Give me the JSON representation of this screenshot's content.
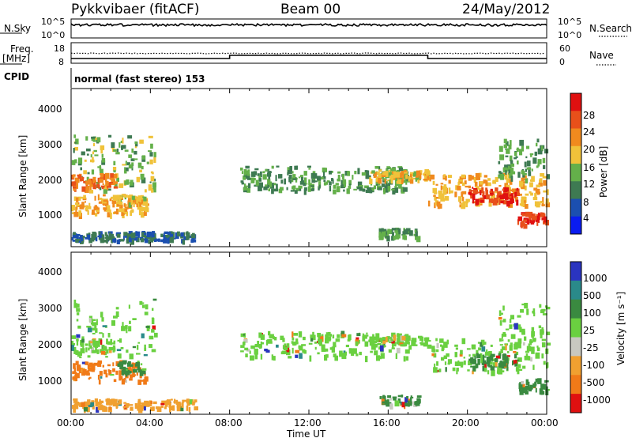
{
  "header": {
    "station": "Pykkvibaer (fitACF)",
    "beam": "Beam 00",
    "date": "24/May/2012"
  },
  "noise_panel": {
    "left_label": "N.Sky",
    "right_label": "N.Search",
    "yticks": [
      "10^5",
      "10^0"
    ],
    "right_ticks": [
      "10^5",
      "10^0"
    ]
  },
  "freq_panel": {
    "left_label_1": "Freq.",
    "left_label_2": "[MHz]",
    "right_label": "Nave",
    "yticks": [
      "18",
      "8"
    ],
    "right_ticks": [
      "60",
      "0"
    ],
    "cpid_label": "CPID"
  },
  "cpid_text": "normal (fast stereo) 153",
  "x_axis": {
    "label": "Time UT",
    "ticks": [
      "00:00",
      "04:00",
      "08:00",
      "12:00",
      "16:00",
      "20:00",
      "00:00"
    ]
  },
  "power_panel": {
    "ylabel": "Slant Range [km]",
    "yticks": [
      "1000",
      "2000",
      "3000",
      "4000"
    ],
    "cbar_label": "Power [dB]",
    "cbar_ticks": [
      "4",
      "8",
      "12",
      "16",
      "20",
      "24",
      "28"
    ],
    "cbar_colors": [
      "#0a1cf0",
      "#1b4fb0",
      "#3e7a52",
      "#64b04a",
      "#f0c23a",
      "#f08a1e",
      "#e8501a",
      "#e01010"
    ]
  },
  "velocity_panel": {
    "ylabel": "Slant Range [km]",
    "yticks": [
      "1000",
      "2000",
      "3000",
      "4000"
    ],
    "cbar_label": "Velocity [m s⁻¹]",
    "cbar_ticks": [
      "1000",
      "500",
      "100",
      "25",
      "-25",
      "-100",
      "-500",
      "-1000"
    ],
    "cbar_colors": [
      "#2a34c0",
      "#2a8a8a",
      "#3a8a40",
      "#6ad040",
      "#c8c8c0",
      "#f0a030",
      "#f07a18",
      "#e01010"
    ]
  },
  "chart_data": {
    "type": "heatmap",
    "x_range_hours": [
      0,
      24
    ],
    "y_range_km": [
      180,
      4700
    ],
    "panels": [
      "Power [dB]",
      "Velocity [m s⁻¹]"
    ],
    "echo_regions": [
      {
        "t0": 0.0,
        "t1": 4.2,
        "r0": 1600,
        "r1": 3200,
        "power": 14,
        "velocity": "25"
      },
      {
        "t0": 0.0,
        "t1": 2.2,
        "r0": 1700,
        "r1": 2100,
        "power": 24,
        "velocity": "25"
      },
      {
        "t0": 0.0,
        "t1": 3.8,
        "r0": 950,
        "r1": 1500,
        "power": 20,
        "velocity": "-500"
      },
      {
        "t0": 2.3,
        "t1": 3.8,
        "r0": 1200,
        "r1": 1500,
        "power": 18,
        "velocity": "100"
      },
      {
        "t0": 0.0,
        "t1": 6.2,
        "r0": 200,
        "r1": 450,
        "power": 8,
        "velocity": "-100"
      },
      {
        "t0": 8.5,
        "t1": 17.0,
        "r0": 1600,
        "r1": 2300,
        "power": 12,
        "velocity": "25"
      },
      {
        "t0": 15.0,
        "t1": 18.0,
        "r0": 1900,
        "r1": 2200,
        "power": 18,
        "velocity": "25"
      },
      {
        "t0": 18.0,
        "t1": 24.0,
        "r0": 1200,
        "r1": 2100,
        "power": 20,
        "velocity": "25"
      },
      {
        "t0": 20.0,
        "t1": 22.5,
        "r0": 1300,
        "r1": 1700,
        "power": 28,
        "velocity": "100"
      },
      {
        "t0": 22.5,
        "t1": 24.0,
        "r0": 650,
        "r1": 1000,
        "power": 28,
        "velocity": "100"
      },
      {
        "t0": 21.5,
        "t1": 24.0,
        "r0": 1900,
        "r1": 3100,
        "power": 12,
        "velocity": "25"
      },
      {
        "t0": 15.5,
        "t1": 17.5,
        "r0": 300,
        "r1": 550,
        "power": 12,
        "velocity": "100"
      }
    ]
  }
}
